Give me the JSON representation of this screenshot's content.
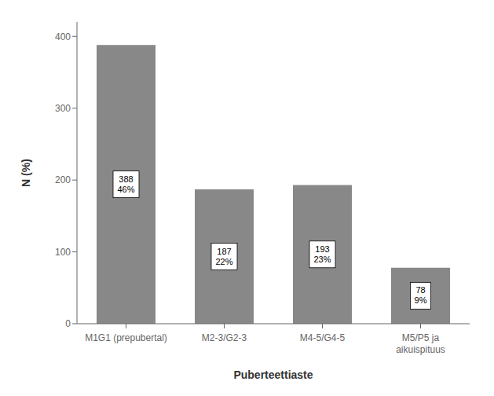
{
  "chart_data": {
    "type": "bar",
    "categories": [
      "M1G1 (prepubertal)",
      "M2-3/G2-3",
      "M4-5/G4-5",
      "M5/P5 ja\naikuispituus"
    ],
    "values": [
      388,
      187,
      193,
      78
    ],
    "value_labels": [
      "388\n46%",
      "187\n22%",
      "193\n23%",
      "78\n9%"
    ],
    "data_labels": true,
    "color": "#888888",
    "xlabel": "Puberteettiaste",
    "ylabel": "N (%)",
    "ylim": [
      0,
      420
    ],
    "yticks": [
      0,
      100,
      200,
      300,
      400
    ],
    "grid": false
  }
}
